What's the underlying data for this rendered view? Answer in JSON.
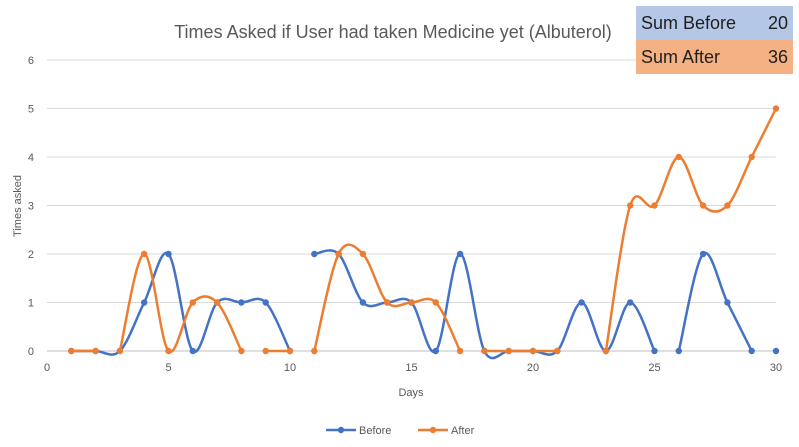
{
  "chart_data": {
    "type": "line",
    "title": "Times Asked if User had taken Medicine yet (Albuterol)",
    "xlabel": "Days",
    "ylabel": "Times asked",
    "xlim": [
      0,
      30
    ],
    "ylim": [
      0,
      6
    ],
    "x_ticks": [
      0,
      5,
      10,
      15,
      20,
      25,
      30
    ],
    "y_ticks": [
      0,
      1,
      2,
      3,
      4,
      5,
      6
    ],
    "grid": true,
    "smooth": true,
    "legend_position": "bottom",
    "series": [
      {
        "name": "Before",
        "color": "#4472c4",
        "segments": [
          [
            [
              1,
              0
            ],
            [
              2,
              0
            ],
            [
              3,
              0
            ],
            [
              4,
              1
            ],
            [
              5,
              2
            ],
            [
              6,
              0
            ],
            [
              7,
              1
            ],
            [
              8,
              1
            ],
            [
              9,
              1
            ],
            [
              10,
              0
            ]
          ],
          [
            [
              11,
              2
            ],
            [
              12,
              2
            ],
            [
              13,
              1
            ],
            [
              14,
              1
            ],
            [
              15,
              1
            ],
            [
              16,
              0
            ],
            [
              17,
              2
            ],
            [
              18,
              0
            ],
            [
              19,
              0
            ],
            [
              20,
              0
            ],
            [
              21,
              0
            ],
            [
              22,
              1
            ],
            [
              23,
              0
            ],
            [
              24,
              1
            ],
            [
              25,
              0
            ]
          ],
          [
            [
              26,
              0
            ],
            [
              27,
              2
            ],
            [
              28,
              1
            ],
            [
              29,
              0
            ]
          ],
          [
            [
              30,
              0
            ]
          ]
        ]
      },
      {
        "name": "After",
        "color": "#ed7d31",
        "segments": [
          [
            [
              1,
              0
            ],
            [
              2,
              0
            ]
          ],
          [
            [
              3,
              0
            ],
            [
              4,
              2
            ],
            [
              5,
              0
            ],
            [
              6,
              1
            ],
            [
              7,
              1
            ],
            [
              8,
              0
            ]
          ],
          [
            [
              9,
              0
            ],
            [
              10,
              0
            ]
          ],
          [
            [
              11,
              0
            ],
            [
              12,
              2
            ],
            [
              13,
              2
            ],
            [
              14,
              1
            ],
            [
              15,
              1
            ],
            [
              16,
              1
            ],
            [
              17,
              0
            ]
          ],
          [
            [
              18,
              0
            ],
            [
              19,
              0
            ],
            [
              20,
              0
            ],
            [
              21,
              0
            ]
          ],
          [
            [
              23,
              0
            ],
            [
              24,
              3
            ],
            [
              25,
              3
            ],
            [
              26,
              4
            ],
            [
              27,
              3
            ],
            [
              28,
              3
            ],
            [
              29,
              4
            ],
            [
              30,
              5
            ]
          ]
        ]
      }
    ]
  },
  "summary": {
    "before_label": "Sum Before",
    "before_value": "20",
    "after_label": "Sum After",
    "after_value": "36",
    "before_color": "#b4c7e7",
    "after_color": "#f4b183"
  }
}
